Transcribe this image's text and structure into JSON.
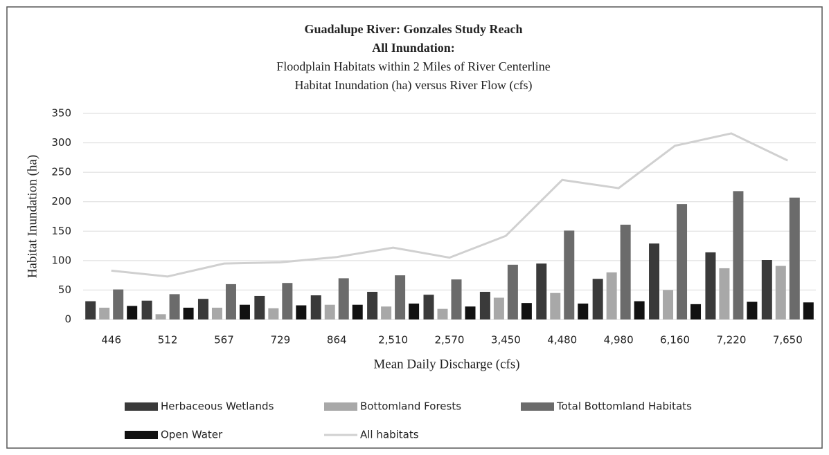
{
  "chart_data": {
    "type": "bar",
    "title": [
      "Guadalupe River: Gonzales Study Reach",
      "All Inundation:"
    ],
    "subtitle": [
      "Floodplain Habitats within 2 Miles of River Centerline",
      "Habitat Inundation (ha) versus River Flow (cfs)"
    ],
    "x_label": "Mean Daily Discharge (cfs)",
    "y_label": "Habitat Inundation (ha)",
    "categories": [
      "446",
      "512",
      "567",
      "729",
      "864",
      "2,510",
      "2,570",
      "3,450",
      "4,480",
      "4,980",
      "6,160",
      "7,220",
      "7,650"
    ],
    "series": [
      {
        "name": "Herbaceous Wetlands",
        "type": "bar",
        "color": "#3a3a3a",
        "values": [
          31,
          32,
          35,
          40,
          41,
          47,
          42,
          47,
          95,
          69,
          129,
          114,
          101
        ]
      },
      {
        "name": "Bottomland Forests",
        "type": "bar",
        "color": "#a8a8a8",
        "values": [
          20,
          9,
          20,
          19,
          25,
          22,
          18,
          37,
          45,
          80,
          50,
          87,
          91
        ]
      },
      {
        "name": "Total Bottomland Habitats",
        "type": "bar",
        "color": "#6b6b6b",
        "values": [
          51,
          43,
          60,
          62,
          70,
          75,
          68,
          93,
          151,
          161,
          196,
          218,
          207
        ]
      },
      {
        "name": "Open Water",
        "type": "bar",
        "color": "#111111",
        "values": [
          23,
          20,
          25,
          24,
          25,
          27,
          22,
          28,
          27,
          31,
          26,
          30,
          29
        ]
      },
      {
        "name": "All habitats",
        "type": "line",
        "color": "#d0d0d0",
        "values": [
          83,
          73,
          95,
          97,
          106,
          122,
          105,
          142,
          237,
          223,
          295,
          316,
          270
        ]
      }
    ],
    "ylim": [
      0,
      350
    ],
    "yticks": [
      0,
      50,
      100,
      150,
      200,
      250,
      300,
      350
    ],
    "grid": true,
    "legend": "bottom"
  }
}
